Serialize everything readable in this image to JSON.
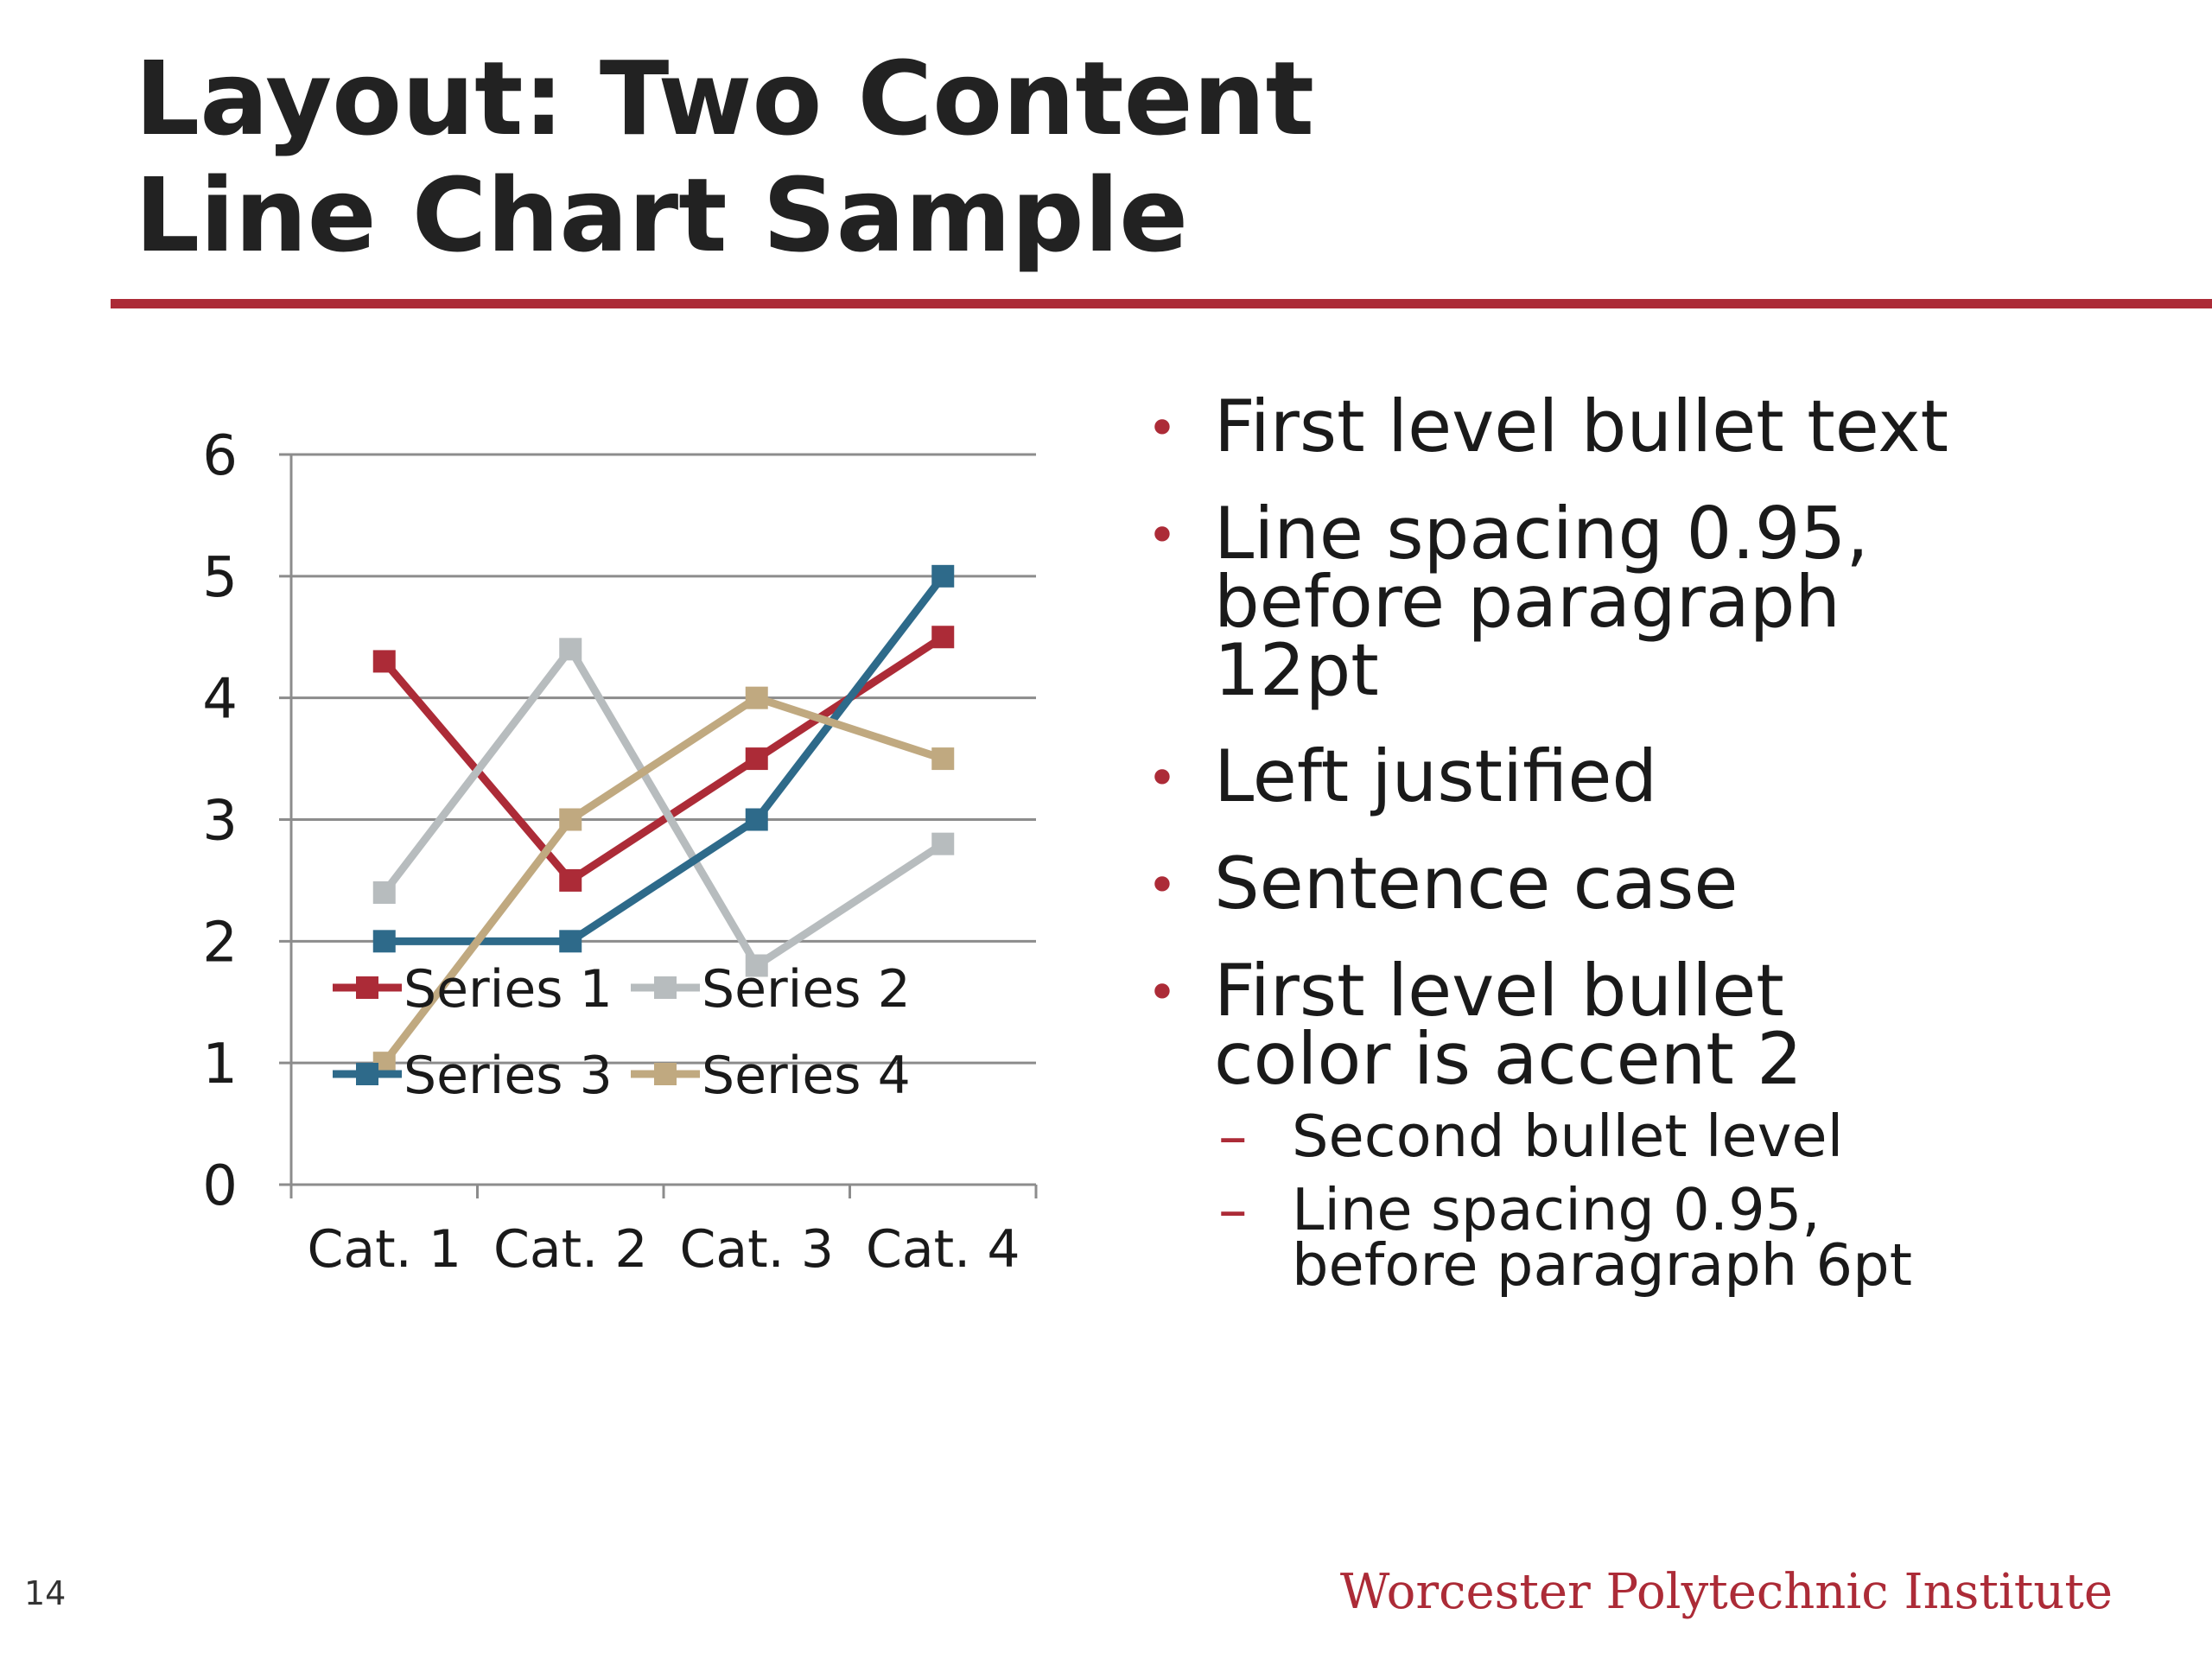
{
  "slide": {
    "title_lines": [
      "Layout: Two Content",
      "Line Chart Sample"
    ],
    "slide_number": "14",
    "institution": "Worcester Polytechnic Institute",
    "accent_color": "#ac2b37",
    "title_color": "#222222"
  },
  "bullets": {
    "level1": [
      "First level bullet text",
      "Line spacing 0.95,\nbefore paragraph\n12pt",
      "Left justified",
      "Sentence case",
      "First level bullet\ncolor is accent 2"
    ],
    "level2": [
      "Second bullet level",
      "Line spacing 0.95,\nbefore paragraph 6pt"
    ]
  },
  "chart_data": {
    "type": "line",
    "categories": [
      "Cat. 1",
      "Cat. 2",
      "Cat. 3",
      "Cat. 4"
    ],
    "series": [
      {
        "name": "Series 1",
        "color": "#ac2b37",
        "values": [
          4.3,
          2.5,
          3.5,
          4.5
        ]
      },
      {
        "name": "Series 2",
        "color": "#b7bcbe",
        "values": [
          2.4,
          4.4,
          1.8,
          2.8
        ]
      },
      {
        "name": "Series 3",
        "color": "#2e6a8a",
        "values": [
          2,
          2,
          3,
          5
        ]
      },
      {
        "name": "Series 4",
        "color": "#c0a980",
        "values": [
          1,
          3,
          4,
          3.5
        ]
      }
    ],
    "ylim": [
      0,
      6
    ],
    "yticks": [
      0,
      1,
      2,
      3,
      4,
      5,
      6
    ],
    "grid": true,
    "legend_position": "bottom",
    "marker": "square"
  }
}
